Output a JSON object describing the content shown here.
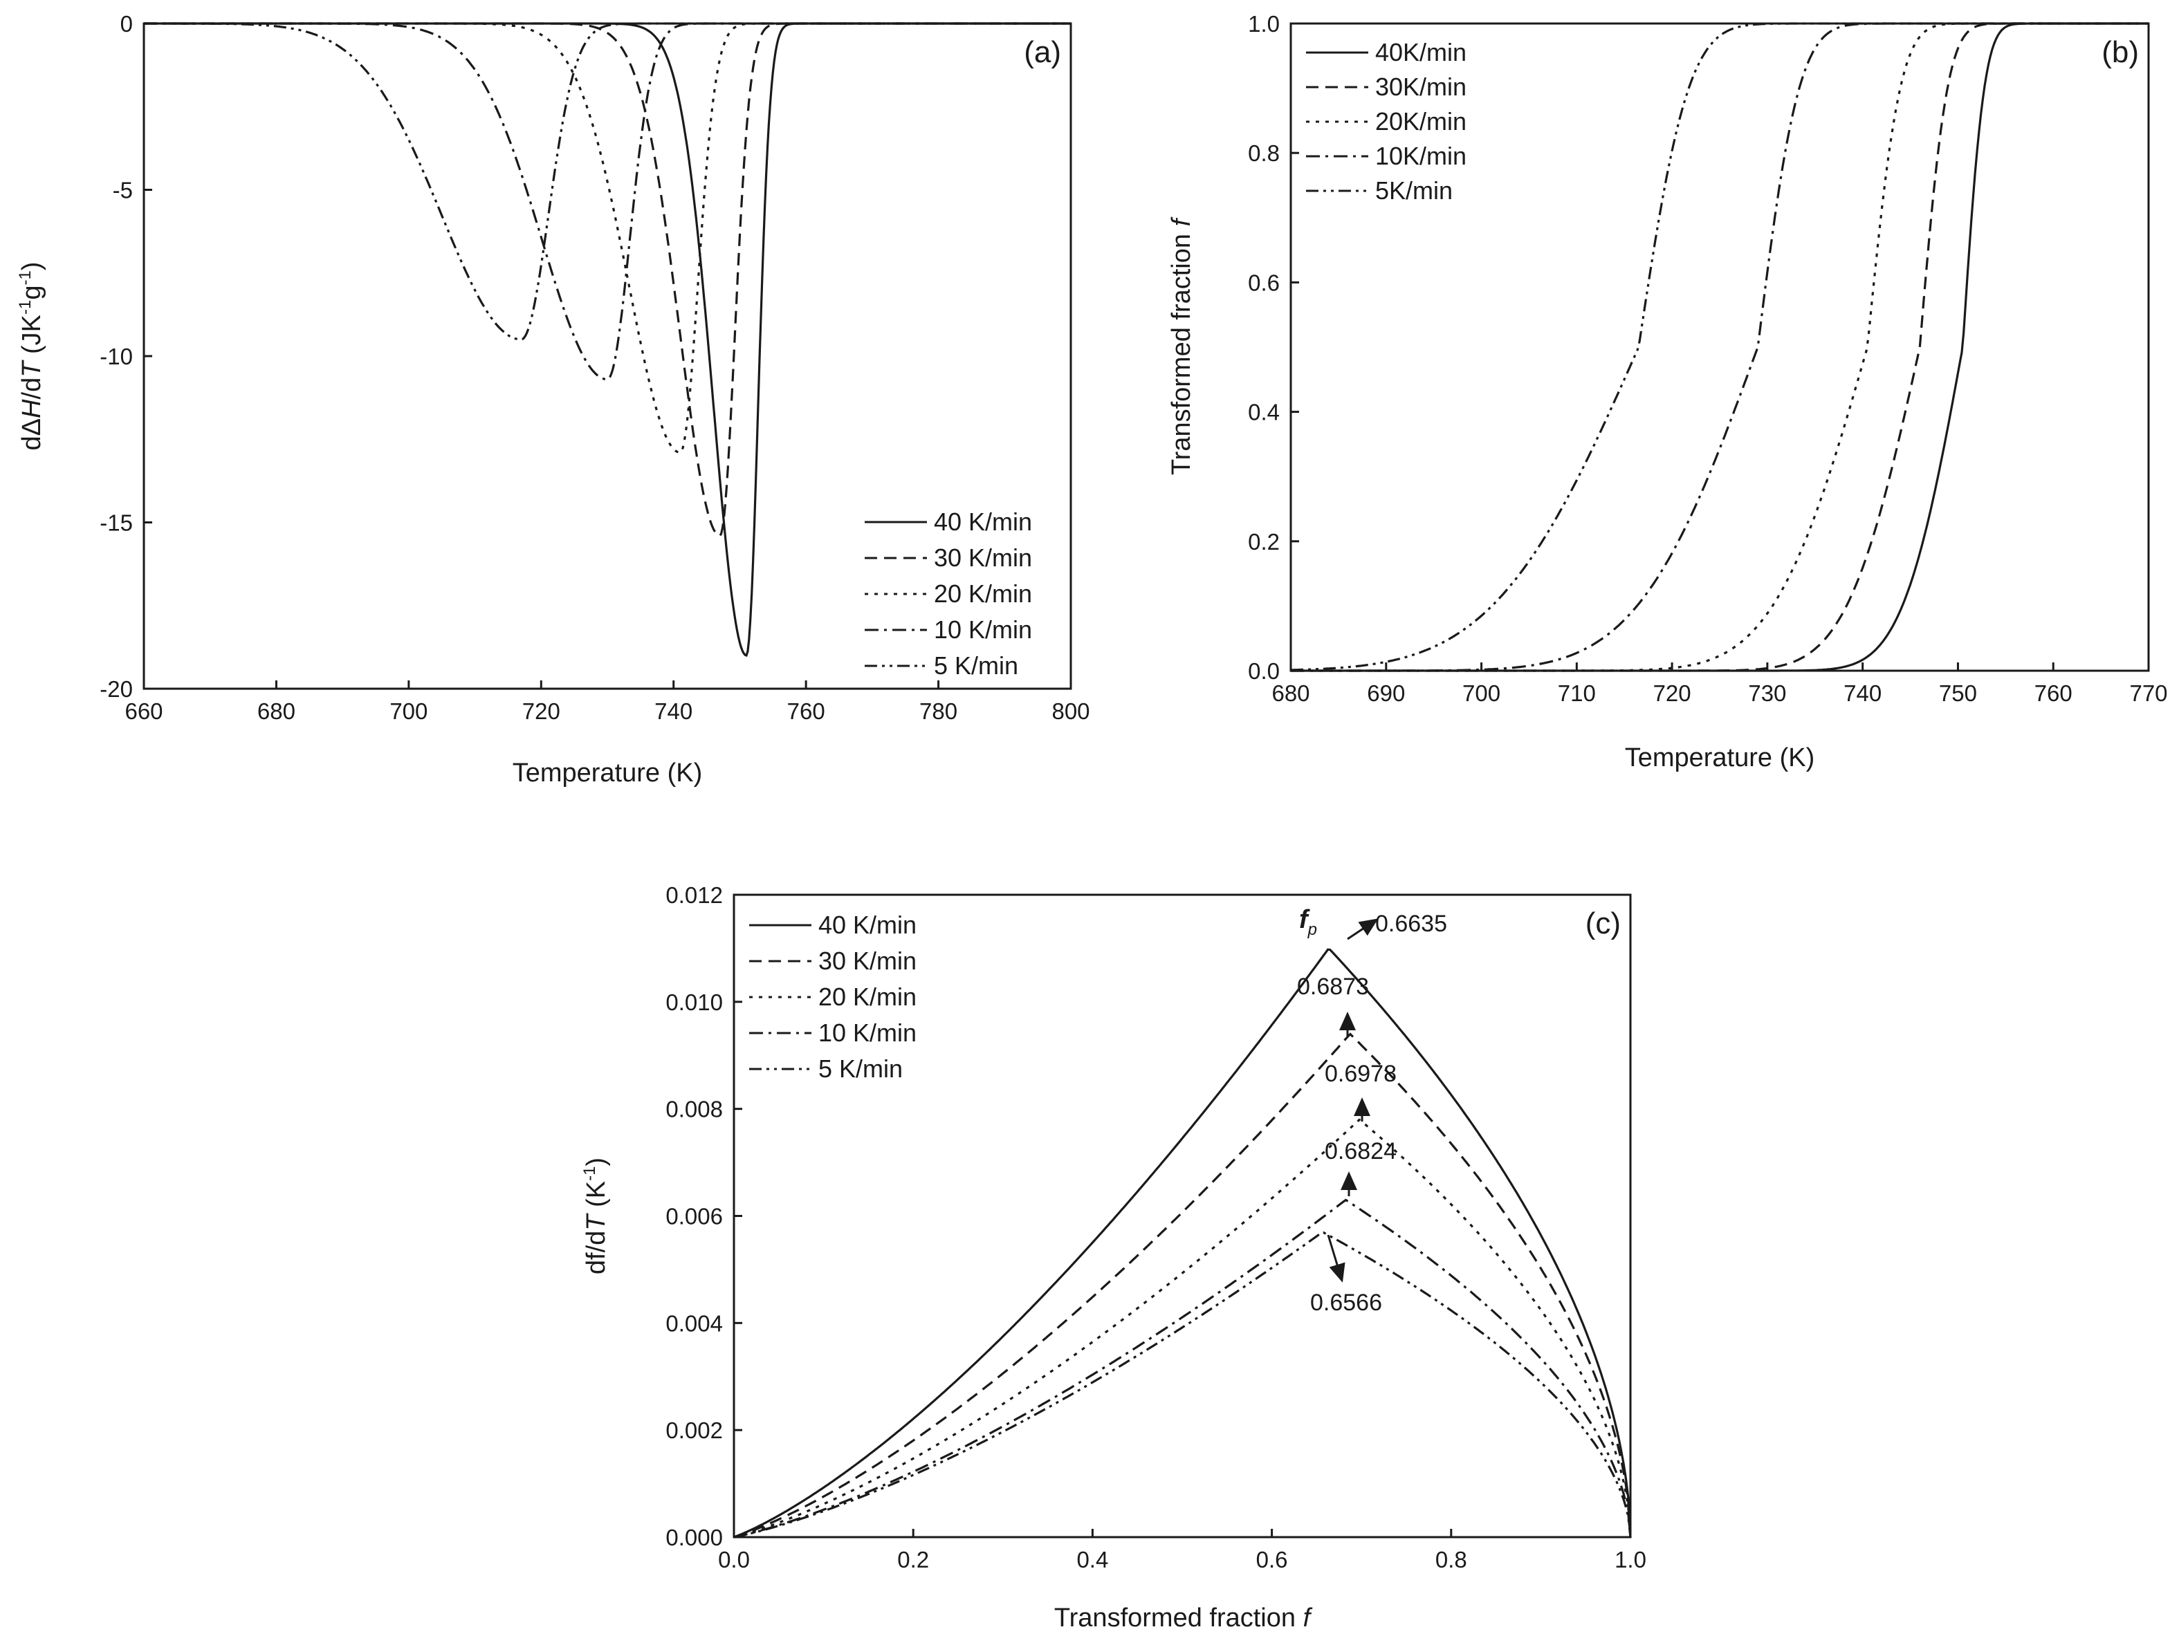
{
  "chart_data": [
    {
      "panel": "(a)",
      "type": "line",
      "xlabel": "Temperature (K)",
      "ylabel_parts": [
        "dΔ",
        "H",
        "/d",
        "T",
        " (JK",
        "-1",
        "g",
        "-1",
        ")"
      ],
      "xlim": [
        660,
        800
      ],
      "ylim": [
        -20,
        0
      ],
      "xticks": [
        660,
        680,
        700,
        720,
        740,
        760,
        780,
        800
      ],
      "yticks": [
        0,
        -5,
        -10,
        -15,
        -20
      ],
      "legend_position": "bottom-right",
      "series": [
        {
          "name": "40 K/min",
          "style": "solid",
          "peak_x": 751,
          "peak_y": -19.0,
          "width_left": 7,
          "width_right": 2.5
        },
        {
          "name": "30 K/min",
          "style": "dash",
          "peak_x": 747,
          "peak_y": -15.4,
          "width_left": 8.5,
          "width_right": 3.2
        },
        {
          "name": "20 K/min",
          "style": "dot",
          "peak_x": 741,
          "peak_y": -12.9,
          "width_left": 11,
          "width_right": 3.8
        },
        {
          "name": "10 K/min",
          "style": "dashdot",
          "peak_x": 730,
          "peak_y": -10.7,
          "width_left": 14,
          "width_right": 4.8
        },
        {
          "name": "5 K/min",
          "style": "dashdotdot",
          "peak_x": 717,
          "peak_y": -9.5,
          "width_left": 17,
          "width_right": 5.8
        }
      ]
    },
    {
      "panel": "(b)",
      "type": "line",
      "xlabel": "Temperature (K)",
      "ylabel": "Transformed fraction ",
      "ylabel_italic": "f",
      "xlim": [
        680,
        770
      ],
      "ylim": [
        0,
        1.0
      ],
      "xticks": [
        680,
        690,
        700,
        710,
        720,
        730,
        740,
        750,
        760,
        770
      ],
      "yticks": [
        0.0,
        0.2,
        0.4,
        0.6,
        0.8,
        1.0
      ],
      "legend_position": "top-left",
      "series": [
        {
          "name": "40K/min",
          "style": "solid",
          "mid_x": 750.5,
          "width_left": 7,
          "width_right": 2.5
        },
        {
          "name": "30K/min",
          "style": "dash",
          "mid_x": 746,
          "width_left": 8.5,
          "width_right": 3.2
        },
        {
          "name": "20K/min",
          "style": "dot",
          "mid_x": 740.5,
          "width_left": 11,
          "width_right": 3.8
        },
        {
          "name": "10K/min",
          "style": "dashdot",
          "mid_x": 729,
          "width_left": 14,
          "width_right": 4.8
        },
        {
          "name": "5K/min",
          "style": "dashdotdot",
          "mid_x": 716.5,
          "width_left": 17,
          "width_right": 5.8
        }
      ]
    },
    {
      "panel": "(c)",
      "type": "line",
      "xlabel": "Transformed fraction ",
      "xlabel_italic": "f",
      "ylabel_parts": [
        "df/d",
        "T",
        " (K",
        "-1",
        ")"
      ],
      "xlim": [
        0.0,
        1.0
      ],
      "ylim": [
        0.0,
        0.012
      ],
      "xticks": [
        0.0,
        0.2,
        0.4,
        0.6,
        0.8,
        1.0
      ],
      "yticks": [
        0.0,
        0.002,
        0.004,
        0.006,
        0.008,
        0.01,
        0.012
      ],
      "legend_position": "top-left",
      "peak_symbol": "f",
      "peak_symbol_sub": "p",
      "series": [
        {
          "name": "40 K/min",
          "style": "solid",
          "peak_f": 0.6635,
          "peak_value": 0.011,
          "annotation": "0.6635"
        },
        {
          "name": "30 K/min",
          "style": "dash",
          "peak_f": 0.6873,
          "peak_value": 0.0094,
          "annotation": "0.6873"
        },
        {
          "name": "20 K/min",
          "style": "dot",
          "peak_f": 0.6978,
          "peak_value": 0.0078,
          "annotation": "0.6978"
        },
        {
          "name": "10 K/min",
          "style": "dashdot",
          "peak_f": 0.6824,
          "peak_value": 0.0063,
          "annotation": "0.6824"
        },
        {
          "name": "5 K/min",
          "style": "dashdotdot",
          "peak_f": 0.6566,
          "peak_value": 0.0057,
          "annotation": "0.6566"
        }
      ]
    }
  ]
}
